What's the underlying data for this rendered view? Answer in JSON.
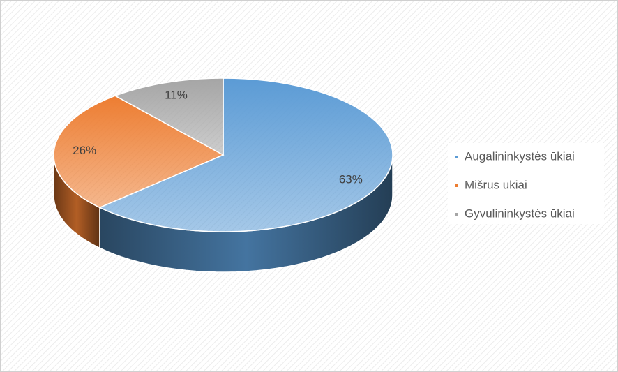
{
  "chart_data": {
    "type": "pie3d",
    "categories": [
      "Augalininkystės ūkiai",
      "Mišrūs ūkiai",
      "Gyvulininkystės ūkiai"
    ],
    "values": [
      63,
      26,
      11
    ],
    "value_labels": [
      "63%",
      "26%",
      "11%"
    ],
    "colors": [
      "#5b9bd5",
      "#ed7d31",
      "#a5a5a5"
    ],
    "legend": "right"
  }
}
